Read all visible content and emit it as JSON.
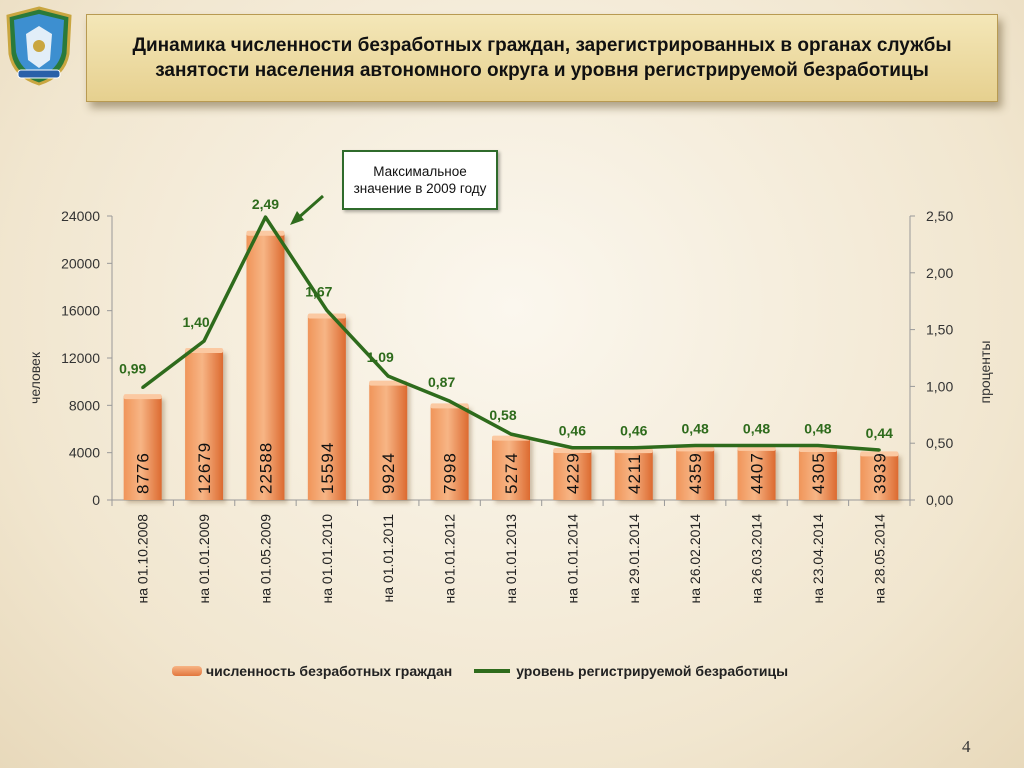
{
  "title": "Динамика численности безработных граждан, зарегистрированных в органах службы занятости населения автономного округа и уровня регистрируемой безработицы",
  "emblem_icon": "coat-of-arms-icon",
  "callout": "Максимальное значение в 2009 году",
  "page_number": "4",
  "colors": {
    "bar": "#f0955a",
    "bar_top": "#f7b585",
    "line": "#2e6b1c",
    "label_green": "#2e6b1c"
  },
  "chart_data": {
    "type": "bar",
    "categories": [
      "на 01.10.2008",
      "на 01.01.2009",
      "на 01.05.2009",
      "на 01.01.2010",
      "на 01.01.2011",
      "на 01.01.2012",
      "на 01.01.2013",
      "на 01.01.2014",
      "на 29.01.2014",
      "на 26.02.2014",
      "на 26.03.2014",
      "на 23.04.2014",
      "на 28.05.2014"
    ],
    "series": [
      {
        "name": "численность безработных граждан",
        "type": "bar",
        "axis": "left",
        "values": [
          8776,
          12679,
          22588,
          15594,
          9924,
          7998,
          5274,
          4229,
          4211,
          4359,
          4407,
          4305,
          3939
        ],
        "labels": [
          "8776",
          "12679",
          "22588",
          "15594",
          "9924",
          "7998",
          "5274",
          "4229",
          "4211",
          "4359",
          "4407",
          "4305",
          "3939"
        ]
      },
      {
        "name": "уровень регистрируемой безработицы",
        "type": "line",
        "axis": "right",
        "values": [
          0.99,
          1.4,
          2.49,
          1.67,
          1.09,
          0.87,
          0.58,
          0.46,
          0.46,
          0.48,
          0.48,
          0.48,
          0.44
        ],
        "labels": [
          "0,99",
          "1,40",
          "2,49",
          "1,67",
          "1,09",
          "0,87",
          "0,58",
          "0,46",
          "0,46",
          "0,48",
          "0,48",
          "0,48",
          "0,44"
        ]
      }
    ],
    "ylabel": "человек",
    "ylabel_right": "проценты",
    "ylim": [
      0,
      24000
    ],
    "ylim_right": [
      0,
      2.5
    ],
    "yticks": [
      0,
      4000,
      8000,
      12000,
      16000,
      20000,
      24000
    ],
    "yticks_labels": [
      "0",
      "4000",
      "8000",
      "12000",
      "16000",
      "20000",
      "24000"
    ],
    "yticks_right": [
      0,
      0.5,
      1,
      1.5,
      2,
      2.5
    ],
    "yticks_right_labels": [
      "0,00",
      "0,50",
      "1,00",
      "1,50",
      "2,00",
      "2,50"
    ],
    "grid": false,
    "legend_position": "bottom"
  }
}
